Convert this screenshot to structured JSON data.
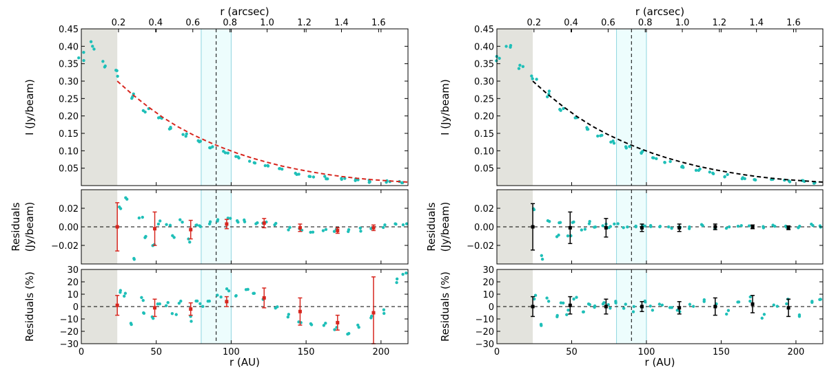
{
  "chart_data": {
    "type": "scatter",
    "axis_labels": {
      "x_bottom": "r (AU)",
      "x_top": "r (arcsec)",
      "y_top": "I (Jy/beam)",
      "y_mid_line1": "Residuals",
      "y_mid_line2": "(Jy/beam)",
      "y_bot": "Residuals (%)"
    },
    "xlim": [
      0,
      218
    ],
    "x_ticks": [
      "0",
      "50",
      "100",
      "150",
      "200"
    ],
    "x_tick_values": [
      0,
      50,
      100,
      150,
      200
    ],
    "arcsec_ticks": [
      "0.2",
      "0.4",
      "0.6",
      "0.8",
      "1.0",
      "1.2",
      "1.4",
      "1.6"
    ],
    "arcsec_tick_values": [
      0.2,
      0.4,
      0.6,
      0.8,
      1.0,
      1.2,
      1.4,
      1.6
    ],
    "au_per_arcsec": 124,
    "shaded_region_au": [
      0,
      24
    ],
    "band_region_au": [
      80,
      100
    ],
    "dashed_vline_au": 90,
    "top_panel": {
      "ylim": [
        0,
        0.45
      ],
      "y_ticks": [
        "0.05",
        "0.10",
        "0.15",
        "0.20",
        "0.25",
        "0.30",
        "0.35",
        "0.40",
        "0.45"
      ],
      "y_tick_values": [
        0.05,
        0.1,
        0.15,
        0.2,
        0.25,
        0.3,
        0.35,
        0.4,
        0.45
      ],
      "data_r_au": [
        0,
        8,
        16,
        25,
        34,
        43,
        52,
        60,
        69,
        78,
        87,
        96,
        105,
        114,
        124,
        134,
        144,
        154,
        164,
        174,
        184,
        194,
        204,
        214
      ],
      "data_i_jybeam": [
        0.37,
        0.4,
        0.35,
        0.32,
        0.26,
        0.225,
        0.195,
        0.165,
        0.145,
        0.125,
        0.11,
        0.095,
        0.08,
        0.068,
        0.055,
        0.045,
        0.036,
        0.028,
        0.023,
        0.019,
        0.016,
        0.013,
        0.011,
        0.009
      ],
      "fit_r_au": [
        24,
        34,
        44,
        54,
        64,
        74,
        84,
        94,
        104,
        114,
        124,
        134,
        144,
        154,
        164,
        174,
        184,
        194,
        204,
        214,
        218
      ],
      "fit_i_jybeam": [
        0.3,
        0.262,
        0.228,
        0.197,
        0.17,
        0.147,
        0.127,
        0.109,
        0.093,
        0.079,
        0.067,
        0.056,
        0.047,
        0.039,
        0.032,
        0.026,
        0.021,
        0.017,
        0.014,
        0.011,
        0.01
      ]
    },
    "mid_panel": {
      "ylim": [
        -0.04,
        0.04
      ],
      "y_ticks": [
        "−0.02",
        "0.00",
        "0.02"
      ],
      "y_tick_values": [
        -0.02,
        0.0,
        0.02
      ],
      "residual_r_au": [
        25,
        30,
        34,
        40,
        43,
        48,
        52,
        58,
        62,
        66,
        72,
        76,
        80,
        86,
        92,
        98,
        104,
        110,
        116,
        122,
        130,
        138,
        146,
        154,
        162,
        170,
        178,
        186,
        194,
        202,
        210,
        216
      ],
      "left_residual_jybeam": [
        0.02,
        0.03,
        -0.035,
        0.01,
        -0.012,
        -0.02,
        0.005,
        0.002,
        -0.01,
        0.006,
        -0.015,
        0.003,
        0.0,
        0.004,
        0.008,
        0.01,
        0.007,
        0.006,
        0.005,
        0.004,
        0.003,
        -0.002,
        -0.003,
        -0.004,
        -0.003,
        -0.004,
        -0.004,
        -0.003,
        -0.001,
        0.001,
        0.003,
        0.004
      ],
      "right_residual_jybeam": [
        0.02,
        -0.033,
        0.005,
        -0.01,
        0.004,
        -0.008,
        0.006,
        -0.003,
        0.004,
        -0.002,
        0.003,
        0.001,
        0.002,
        0.001,
        -0.001,
        0.001,
        0.0,
        0.001,
        0.0,
        -0.001,
        0.0,
        0.001,
        0.0,
        0.0,
        0.001,
        0.0,
        -0.001,
        0.0,
        0.001,
        0.0,
        0.001,
        0.0
      ],
      "left_errorbars": [
        {
          "r": 24,
          "y": 0.0,
          "err": 0.026
        },
        {
          "r": 49,
          "y": -0.002,
          "err": 0.018
        },
        {
          "r": 73,
          "y": -0.003,
          "err": 0.01
        },
        {
          "r": 97,
          "y": 0.003,
          "err": 0.005
        },
        {
          "r": 122,
          "y": 0.004,
          "err": 0.005
        },
        {
          "r": 146,
          "y": -0.001,
          "err": 0.004
        },
        {
          "r": 171,
          "y": -0.004,
          "err": 0.003
        },
        {
          "r": 195,
          "y": -0.001,
          "err": 0.003
        }
      ],
      "right_errorbars": [
        {
          "r": 24,
          "y": 0.0,
          "err": 0.025
        },
        {
          "r": 49,
          "y": -0.001,
          "err": 0.017
        },
        {
          "r": 73,
          "y": -0.001,
          "err": 0.01
        },
        {
          "r": 97,
          "y": -0.001,
          "err": 0.004
        },
        {
          "r": 122,
          "y": -0.001,
          "err": 0.004
        },
        {
          "r": 146,
          "y": 0.0,
          "err": 0.003
        },
        {
          "r": 171,
          "y": 0.0,
          "err": 0.002
        },
        {
          "r": 195,
          "y": -0.001,
          "err": 0.002
        }
      ]
    },
    "bot_panel": {
      "ylim": [
        -30,
        30
      ],
      "y_ticks": [
        "−30",
        "−20",
        "−10",
        "0",
        "10",
        "20",
        "30"
      ],
      "y_tick_values": [
        -30,
        -20,
        -10,
        0,
        10,
        20,
        30
      ],
      "left_residual_pct": [
        12,
        9,
        -12,
        6,
        -5,
        -8,
        2,
        1,
        -6,
        5,
        -10,
        3,
        0,
        4,
        9,
        12,
        11,
        14,
        13,
        8,
        1,
        -8,
        -12,
        -15,
        -13,
        -18,
        -20,
        -16,
        -10,
        -5,
        20,
        25
      ],
      "right_residual_pct": [
        8,
        -13,
        5,
        -6,
        3,
        -5,
        5,
        -2,
        4,
        -1,
        3,
        1,
        2,
        1,
        -2,
        2,
        -1,
        3,
        1,
        -3,
        0,
        4,
        2,
        -5,
        3,
        6,
        -8,
        2,
        4,
        -6,
        3,
        8
      ],
      "left_errorbars": [
        {
          "r": 24,
          "y": 1,
          "err": 8
        },
        {
          "r": 49,
          "y": -1,
          "err": 7
        },
        {
          "r": 73,
          "y": -2,
          "err": 5
        },
        {
          "r": 97,
          "y": 4,
          "err": 4
        },
        {
          "r": 122,
          "y": 7,
          "err": 8
        },
        {
          "r": 146,
          "y": -4,
          "err": 11
        },
        {
          "r": 171,
          "y": -13,
          "err": 6
        },
        {
          "r": 195,
          "y": -5,
          "err": 29
        }
      ],
      "right_errorbars": [
        {
          "r": 24,
          "y": 0,
          "err": 8
        },
        {
          "r": 49,
          "y": 1,
          "err": 7
        },
        {
          "r": 73,
          "y": 0,
          "err": 6
        },
        {
          "r": 97,
          "y": 0,
          "err": 4
        },
        {
          "r": 122,
          "y": -1,
          "err": 5
        },
        {
          "r": 146,
          "y": 0,
          "err": 7
        },
        {
          "r": 171,
          "y": 2,
          "err": 7
        },
        {
          "r": 195,
          "y": -1,
          "err": 7
        }
      ]
    },
    "colors": {
      "data_points": "#1fbfb8",
      "left_fit": "#d7261e",
      "right_fit": "#000000",
      "shaded_region": "#e3e3dd",
      "band_region": "#edfdfd",
      "band_edge": "#8ed6e0"
    }
  }
}
